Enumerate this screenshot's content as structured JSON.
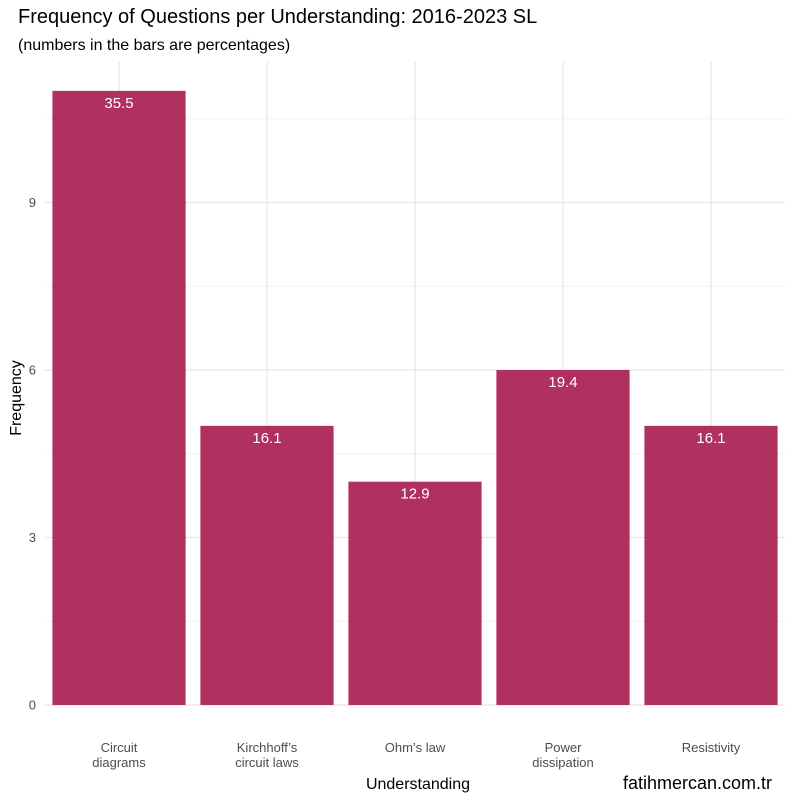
{
  "chart_data": {
    "type": "bar",
    "title": "Frequency of Questions per Understanding: 2016-2023 SL",
    "subtitle": "(numbers in the bars are percentages)",
    "xlabel": "Understanding",
    "ylabel": "Frequency",
    "categories": [
      [
        "Circuit",
        "diagrams"
      ],
      [
        "Kirchhoff’s",
        "circuit laws"
      ],
      [
        "Ohm’s law"
      ],
      [
        "Power",
        "dissipation"
      ],
      [
        "Resistivity"
      ]
    ],
    "values": [
      11,
      5,
      4,
      6,
      5
    ],
    "percent_labels": [
      "35.5",
      "16.1",
      "12.9",
      "19.4",
      "16.1"
    ],
    "yticks": [
      0,
      3,
      6,
      9
    ],
    "ylim": [
      0,
      11
    ],
    "grid": true,
    "bar_color": "#B03060"
  },
  "watermark": "fatihmercan.com.tr"
}
